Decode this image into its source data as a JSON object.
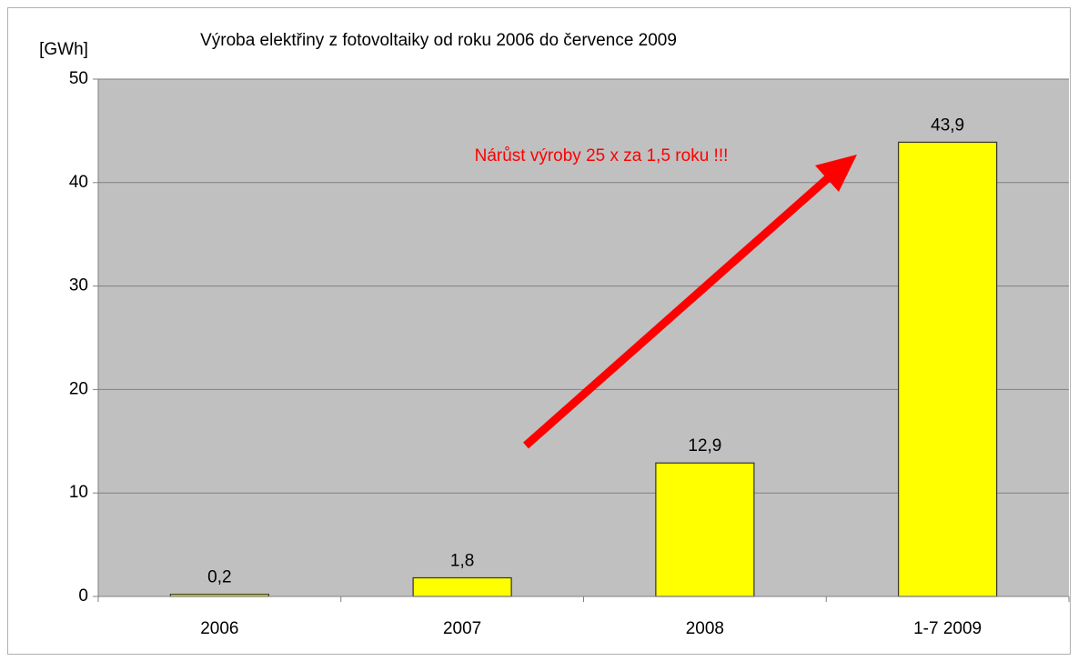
{
  "chart_data": {
    "type": "bar",
    "title": "Výroba elektřiny z fotovoltaiky od roku 2006 do července 2009",
    "y_label": "[GWh]",
    "annotation": "Nárůst výroby 25 x za 1,5 roku !!!",
    "categories": [
      "2006",
      "2007",
      "2008",
      "1-7 2009"
    ],
    "values": [
      0.2,
      1.8,
      12.9,
      43.9
    ],
    "value_labels": [
      "0,2",
      "1,8",
      "12,9",
      "43,9"
    ],
    "color": "#ffff00",
    "ylim": [
      0,
      50
    ],
    "yticks": [
      0,
      10,
      20,
      30,
      40,
      50
    ],
    "grid": true
  }
}
